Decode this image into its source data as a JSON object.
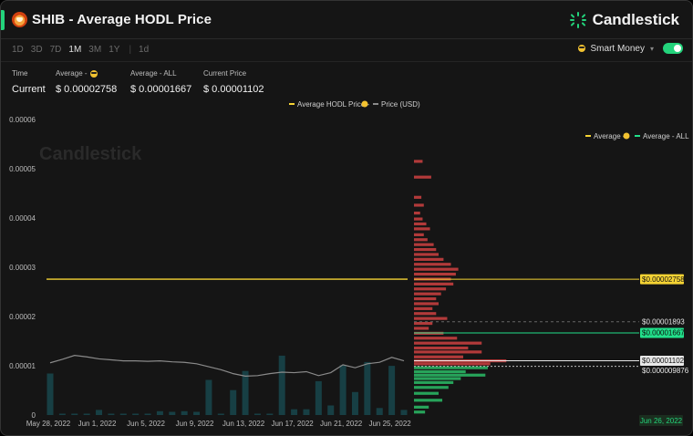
{
  "header": {
    "title": "SHIB - Average HODL Price",
    "brand": "Candlestick"
  },
  "toolbar": {
    "ranges": [
      "1D",
      "3D",
      "7D",
      "1M",
      "3M",
      "1Y"
    ],
    "active_range": "1M",
    "interval": "1d",
    "smart_money_label": "Smart Money",
    "smart_money_enabled": true
  },
  "stats": {
    "time_label": "Time",
    "time_value": "Current",
    "avg_smart_label": "Average -",
    "avg_smart_value": "$ 0.00002758",
    "avg_all_label": "Average - ALL",
    "avg_all_value": "$ 0.00001667",
    "current_label": "Current Price",
    "current_value": "$ 0.00001102"
  },
  "watermark": "Candlestick",
  "legend_top": {
    "avg_hodl": "Average HODL Price -",
    "price": "Price (USD)"
  },
  "legend_right": {
    "avg_smart": "Average -",
    "avg_all": "Average - ALL"
  },
  "colors": {
    "accent": "#23d37b",
    "avg_line": "#f5d334",
    "price_line": "#8a8a8a",
    "volume_bar": "#173f44",
    "profile_above": "#b23a3a",
    "profile_below": "#27a35a"
  },
  "tags": {
    "avg_smart": "$0.00002758",
    "ref": "$0.00001893",
    "avg_all": "$0.00001667",
    "current": "$0.00001102",
    "low": "$0.000009876",
    "date": "Jun 26, 2022"
  },
  "chart_data": {
    "type": "line",
    "title": "",
    "xlabel": "",
    "ylabel": "",
    "ylim": [
      0,
      6e-05
    ],
    "y_ticks": [
      "0",
      "0.00001",
      "0.00002",
      "0.00003",
      "0.00004",
      "0.00005",
      "0.00006"
    ],
    "x_ticks": [
      "May 28, 2022",
      "Jun 1, 2022",
      "Jun 5, 2022",
      "Jun 9, 2022",
      "Jun 13, 2022",
      "Jun 17, 2022",
      "Jun 21, 2022",
      "Jun 25, 2022"
    ],
    "x": [
      "2022-05-28",
      "2022-05-29",
      "2022-05-30",
      "2022-05-31",
      "2022-06-01",
      "2022-06-02",
      "2022-06-03",
      "2022-06-04",
      "2022-06-05",
      "2022-06-06",
      "2022-06-07",
      "2022-06-08",
      "2022-06-09",
      "2022-06-10",
      "2022-06-11",
      "2022-06-12",
      "2022-06-13",
      "2022-06-14",
      "2022-06-15",
      "2022-06-16",
      "2022-06-17",
      "2022-06-18",
      "2022-06-19",
      "2022-06-20",
      "2022-06-21",
      "2022-06-22",
      "2022-06-23",
      "2022-06-24",
      "2022-06-25",
      "2022-06-26"
    ],
    "series": [
      {
        "name": "Average HODL Price -",
        "values": [
          2.758e-05,
          2.758e-05,
          2.758e-05,
          2.758e-05,
          2.758e-05,
          2.758e-05,
          2.758e-05,
          2.758e-05,
          2.758e-05,
          2.758e-05,
          2.758e-05,
          2.758e-05,
          2.758e-05,
          2.758e-05,
          2.758e-05,
          2.758e-05,
          2.758e-05,
          2.758e-05,
          2.758e-05,
          2.758e-05,
          2.758e-05,
          2.758e-05,
          2.758e-05,
          2.758e-05,
          2.758e-05,
          2.758e-05,
          2.758e-05,
          2.758e-05,
          2.758e-05,
          2.758e-05
        ]
      },
      {
        "name": "Price (USD)",
        "values": [
          1.06e-05,
          1.13e-05,
          1.21e-05,
          1.18e-05,
          1.14e-05,
          1.12e-05,
          1.1e-05,
          1.1e-05,
          1.09e-05,
          1.1e-05,
          1.08e-05,
          1.07e-05,
          1.04e-05,
          9.8e-06,
          9.2e-06,
          8.4e-06,
          7.9e-06,
          8e-06,
          8.4e-06,
          8.7e-06,
          8.6e-06,
          8.8e-06,
          8e-06,
          8.6e-06,
          1.02e-05,
          9.6e-06,
          1.04e-05,
          1.07e-05,
          1.17e-05,
          1.1e-05
        ]
      }
    ],
    "volume": [
      0.65,
      0.01,
      0.01,
      0.01,
      0.08,
      0.01,
      0.01,
      0.01,
      0.01,
      0.06,
      0.05,
      0.06,
      0.05,
      0.55,
      0.01,
      0.39,
      0.69,
      0.01,
      0.01,
      0.93,
      0.09,
      0.09,
      0.53,
      0.15,
      0.78,
      0.36,
      0.83,
      0.11,
      0.77,
      0.08
    ],
    "volume_profile": [
      {
        "price": 5.15e-05,
        "length": 0.07,
        "side": "above"
      },
      {
        "price": 4.83e-05,
        "length": 0.14,
        "side": "above"
      },
      {
        "price": 4.42e-05,
        "length": 0.06,
        "side": "above"
      },
      {
        "price": 4.26e-05,
        "length": 0.08,
        "side": "above"
      },
      {
        "price": 4.1e-05,
        "length": 0.05,
        "side": "above"
      },
      {
        "price": 3.98e-05,
        "length": 0.07,
        "side": "above"
      },
      {
        "price": 3.88e-05,
        "length": 0.1,
        "side": "above"
      },
      {
        "price": 3.78e-05,
        "length": 0.13,
        "side": "above"
      },
      {
        "price": 3.66e-05,
        "length": 0.08,
        "side": "above"
      },
      {
        "price": 3.56e-05,
        "length": 0.11,
        "side": "above"
      },
      {
        "price": 3.46e-05,
        "length": 0.16,
        "side": "above"
      },
      {
        "price": 3.36e-05,
        "length": 0.18,
        "side": "above"
      },
      {
        "price": 3.26e-05,
        "length": 0.2,
        "side": "above"
      },
      {
        "price": 3.16e-05,
        "length": 0.24,
        "side": "above"
      },
      {
        "price": 3.06e-05,
        "length": 0.3,
        "side": "above"
      },
      {
        "price": 2.96e-05,
        "length": 0.36,
        "side": "above"
      },
      {
        "price": 2.86e-05,
        "length": 0.34,
        "side": "above"
      },
      {
        "price": 2.76e-05,
        "length": 0.3,
        "side": "above"
      },
      {
        "price": 2.66e-05,
        "length": 0.32,
        "side": "above"
      },
      {
        "price": 2.56e-05,
        "length": 0.26,
        "side": "above"
      },
      {
        "price": 2.46e-05,
        "length": 0.22,
        "side": "above"
      },
      {
        "price": 2.36e-05,
        "length": 0.18,
        "side": "above"
      },
      {
        "price": 2.26e-05,
        "length": 0.2,
        "side": "above"
      },
      {
        "price": 2.16e-05,
        "length": 0.15,
        "side": "above"
      },
      {
        "price": 2.06e-05,
        "length": 0.18,
        "side": "above"
      },
      {
        "price": 1.96e-05,
        "length": 0.27,
        "side": "above"
      },
      {
        "price": 1.86e-05,
        "length": 0.15,
        "side": "above"
      },
      {
        "price": 1.76e-05,
        "length": 0.12,
        "side": "above"
      },
      {
        "price": 1.66e-05,
        "length": 0.24,
        "side": "above"
      },
      {
        "price": 1.56e-05,
        "length": 0.35,
        "side": "above"
      },
      {
        "price": 1.46e-05,
        "length": 0.55,
        "side": "above"
      },
      {
        "price": 1.36e-05,
        "length": 0.44,
        "side": "above"
      },
      {
        "price": 1.28e-05,
        "length": 0.55,
        "side": "above"
      },
      {
        "price": 1.18e-05,
        "length": 0.4,
        "side": "above"
      },
      {
        "price": 1.1e-05,
        "length": 0.75,
        "side": "above"
      },
      {
        "price": 1.04e-05,
        "length": 0.62,
        "side": "above"
      },
      {
        "price": 9.6e-06,
        "length": 0.6,
        "side": "below"
      },
      {
        "price": 8.8e-06,
        "length": 0.42,
        "side": "below"
      },
      {
        "price": 8.1e-06,
        "length": 0.58,
        "side": "below"
      },
      {
        "price": 7.4e-06,
        "length": 0.38,
        "side": "below"
      },
      {
        "price": 6.6e-06,
        "length": 0.32,
        "side": "below"
      },
      {
        "price": 5.6e-06,
        "length": 0.28,
        "side": "below"
      },
      {
        "price": 4.4e-06,
        "length": 0.2,
        "side": "below"
      },
      {
        "price": 3e-06,
        "length": 0.23,
        "side": "below"
      },
      {
        "price": 1.6e-06,
        "length": 0.12,
        "side": "below"
      },
      {
        "price": 6e-07,
        "length": 0.09,
        "side": "below"
      }
    ],
    "reference_lines": {
      "avg_smart": 2.758e-05,
      "ref": 1.893e-05,
      "avg_all": 1.667e-05,
      "current": 1.102e-05,
      "low": 9.876e-06
    },
    "grid": false,
    "legend_position": "top-center"
  }
}
